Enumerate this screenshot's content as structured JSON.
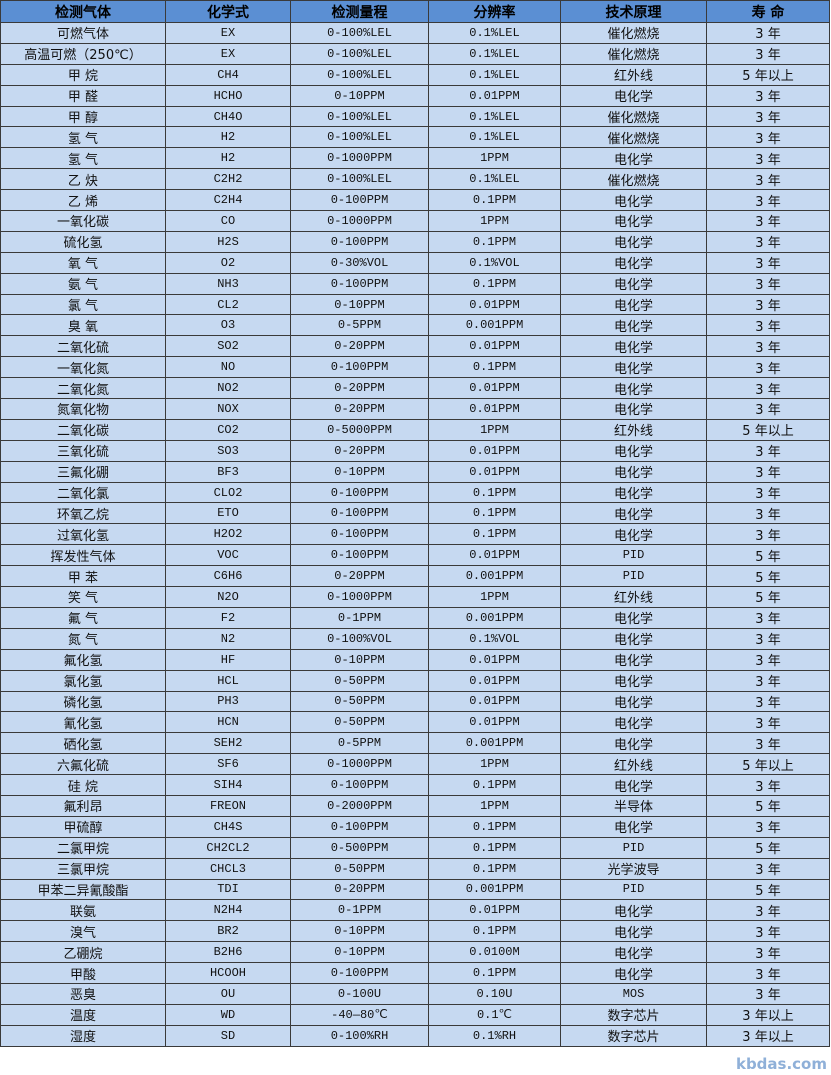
{
  "headers": [
    "检测气体",
    "化学式",
    "检测量程",
    "分辨率",
    "技术原理",
    "寿 命"
  ],
  "rows": [
    [
      "可燃气体",
      "EX",
      "0-100%LEL",
      "0.1%LEL",
      "催化燃烧",
      "3 年"
    ],
    [
      "高温可燃（250℃）",
      "EX",
      "0-100%LEL",
      "0.1%LEL",
      "催化燃烧",
      "3 年"
    ],
    [
      "甲 烷",
      "CH4",
      "0-100%LEL",
      "0.1%LEL",
      "红外线",
      "5 年以上"
    ],
    [
      "甲 醛",
      "HCHO",
      "0-10PPM",
      "0.01PPM",
      "电化学",
      "3 年"
    ],
    [
      "甲 醇",
      "CH4O",
      "0-100%LEL",
      "0.1%LEL",
      "催化燃烧",
      "3 年"
    ],
    [
      "氢 气",
      "H2",
      "0-100%LEL",
      "0.1%LEL",
      "催化燃烧",
      "3 年"
    ],
    [
      "氢 气",
      "H2",
      "0-1000PPM",
      "1PPM",
      "电化学",
      "3 年"
    ],
    [
      "乙 炔",
      "C2H2",
      "0-100%LEL",
      "0.1%LEL",
      "催化燃烧",
      "3 年"
    ],
    [
      "乙 烯",
      "C2H4",
      "0-100PPM",
      "0.1PPM",
      "电化学",
      "3 年"
    ],
    [
      "一氧化碳",
      "CO",
      "0-1000PPM",
      "1PPM",
      "电化学",
      "3 年"
    ],
    [
      "硫化氢",
      "H2S",
      "0-100PPM",
      "0.1PPM",
      "电化学",
      "3 年"
    ],
    [
      "氧 气",
      "O2",
      "0-30%VOL",
      "0.1%VOL",
      "电化学",
      "3 年"
    ],
    [
      "氨 气",
      "NH3",
      "0-100PPM",
      "0.1PPM",
      "电化学",
      "3 年"
    ],
    [
      "氯 气",
      "CL2",
      "0-10PPM",
      "0.01PPM",
      "电化学",
      "3 年"
    ],
    [
      "臭 氧",
      "O3",
      "0-5PPM",
      "0.001PPM",
      "电化学",
      "3 年"
    ],
    [
      "二氧化硫",
      "SO2",
      "0-20PPM",
      "0.01PPM",
      "电化学",
      "3 年"
    ],
    [
      "一氧化氮",
      "NO",
      "0-100PPM",
      "0.1PPM",
      "电化学",
      "3 年"
    ],
    [
      "二氧化氮",
      "NO2",
      "0-20PPM",
      "0.01PPM",
      "电化学",
      "3 年"
    ],
    [
      "氮氧化物",
      "NOX",
      "0-20PPM",
      "0.01PPM",
      "电化学",
      "3 年"
    ],
    [
      "二氧化碳",
      "CO2",
      "0-5000PPM",
      "1PPM",
      "红外线",
      "5 年以上"
    ],
    [
      "三氧化硫",
      "SO3",
      "0-20PPM",
      "0.01PPM",
      "电化学",
      "3 年"
    ],
    [
      "三氟化硼",
      "BF3",
      "0-10PPM",
      "0.01PPM",
      "电化学",
      "3 年"
    ],
    [
      "二氧化氯",
      "CLO2",
      "0-100PPM",
      "0.1PPM",
      "电化学",
      "3 年"
    ],
    [
      "环氧乙烷",
      "ETO",
      "0-100PPM",
      "0.1PPM",
      "电化学",
      "3 年"
    ],
    [
      "过氧化氢",
      "H2O2",
      "0-100PPM",
      "0.1PPM",
      "电化学",
      "3 年"
    ],
    [
      "挥发性气体",
      "VOC",
      "0-100PPM",
      "0.01PPM",
      "PID",
      "5 年"
    ],
    [
      "甲 苯",
      "C6H6",
      "0-20PPM",
      "0.001PPM",
      "PID",
      "5 年"
    ],
    [
      "笑 气",
      "N2O",
      "0-1000PPM",
      "1PPM",
      "红外线",
      "5 年"
    ],
    [
      "氟 气",
      "F2",
      "0-1PPM",
      "0.001PPM",
      "电化学",
      "3 年"
    ],
    [
      "氮 气",
      "N2",
      "0-100%VOL",
      "0.1%VOL",
      "电化学",
      "3 年"
    ],
    [
      "氟化氢",
      "HF",
      "0-10PPM",
      "0.01PPM",
      "电化学",
      "3 年"
    ],
    [
      "氯化氢",
      "HCL",
      "0-50PPM",
      "0.01PPM",
      "电化学",
      "3 年"
    ],
    [
      "磷化氢",
      "PH3",
      "0-50PPM",
      "0.01PPM",
      "电化学",
      "3 年"
    ],
    [
      "氰化氢",
      "HCN",
      "0-50PPM",
      "0.01PPM",
      "电化学",
      "3 年"
    ],
    [
      "硒化氢",
      "SEH2",
      "0-5PPM",
      "0.001PPM",
      "电化学",
      "3 年"
    ],
    [
      "六氟化硫",
      "SF6",
      "0-1000PPM",
      "1PPM",
      "红外线",
      "5 年以上"
    ],
    [
      "硅 烷",
      "SIH4",
      "0-100PPM",
      "0.1PPM",
      "电化学",
      "3 年"
    ],
    [
      "氟利昂",
      "FREON",
      "0-2000PPM",
      "1PPM",
      "半导体",
      "5 年"
    ],
    [
      "甲硫醇",
      "CH4S",
      "0-100PPM",
      "0.1PPM",
      "电化学",
      "3 年"
    ],
    [
      "二氯甲烷",
      "CH2CL2",
      "0-500PPM",
      "0.1PPM",
      "PID",
      "5 年"
    ],
    [
      "三氯甲烷",
      "CHCL3",
      "0-50PPM",
      "0.1PPM",
      "光学波导",
      "3 年"
    ],
    [
      "甲苯二异氰酸酯",
      "TDI",
      "0-20PPM",
      "0.001PPM",
      "PID",
      "5 年"
    ],
    [
      "联氨",
      "N2H4",
      "0-1PPM",
      "0.01PPM",
      "电化学",
      "3 年"
    ],
    [
      "溴气",
      "BR2",
      "0-10PPM",
      "0.1PPM",
      "电化学",
      "3 年"
    ],
    [
      "乙硼烷",
      "B2H6",
      "0-10PPM",
      "0.0100M",
      "电化学",
      "3 年"
    ],
    [
      "甲酸",
      "HCOOH",
      "0-100PPM",
      "0.1PPM",
      "电化学",
      "3 年"
    ],
    [
      "恶臭",
      "OU",
      "0-100U",
      "0.10U",
      "MOS",
      "3 年"
    ],
    [
      "温度",
      "WD",
      "-40—80℃",
      "0.1℃",
      "数字芯片",
      "3 年以上"
    ],
    [
      "湿度",
      "SD",
      "0-100%RH",
      "0.1%RH",
      "数字芯片",
      "3 年以上"
    ]
  ],
  "watermark": "kbdas.com",
  "colors": {
    "header_bg": "#5b8fd3",
    "row_bg": "#c6d9f1",
    "border": "#3a3a3a"
  }
}
